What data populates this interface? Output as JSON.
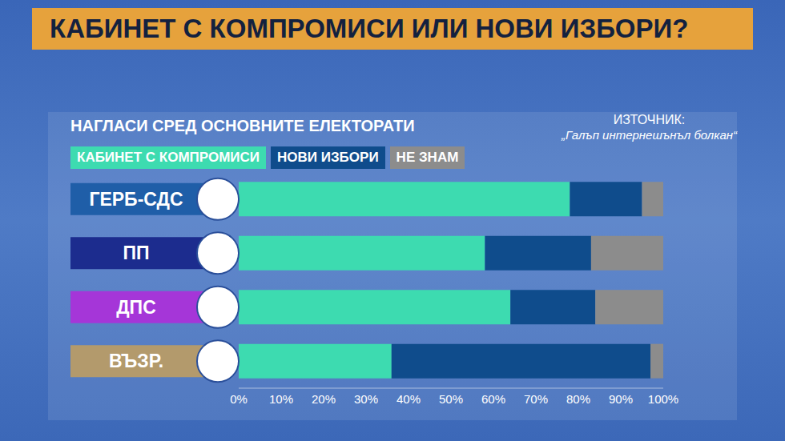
{
  "chart_data": {
    "type": "bar",
    "orientation": "horizontal",
    "stacked": true,
    "title": "КАБИНЕТ С КОМПРОМИСИ ИЛИ НОВИ ИЗБОРИ?",
    "subtitle": "НАГЛАСИ СРЕД ОСНОВНИТЕ ЕЛЕКТОРАТИ",
    "source_label": "ИЗТОЧНИК:",
    "source": "„Галъп интернешънъл болкан“",
    "categories": [
      "ГЕРБ-СДС",
      "ПП",
      "ДПС",
      "ВЪЗР."
    ],
    "series": [
      {
        "name": "КАБИНЕТ С КОМПРОМИСИ",
        "color": "#3ddbb0",
        "values": [
          78,
          58,
          64,
          36
        ]
      },
      {
        "name": "НОВИ ИЗБОРИ",
        "color": "#0f4c8c",
        "values": [
          17,
          25,
          20,
          61
        ]
      },
      {
        "name": "НЕ ЗНАМ",
        "color": "#8c8c8c",
        "values": [
          5,
          17,
          16,
          3
        ]
      }
    ],
    "xlim": [
      0,
      100
    ],
    "xticks": [
      {
        "value": 0,
        "label": "0%"
      },
      {
        "value": 10,
        "label": "10%"
      },
      {
        "value": 20,
        "label": "20%"
      },
      {
        "value": 30,
        "label": "30%"
      },
      {
        "value": 40,
        "label": "40%"
      },
      {
        "value": 50,
        "label": "50%"
      },
      {
        "value": 60,
        "label": "60%"
      },
      {
        "value": 70,
        "label": "70%"
      },
      {
        "value": 80,
        "label": "80%"
      },
      {
        "value": 90,
        "label": "90%"
      },
      {
        "value": 100,
        "label": "100%"
      }
    ],
    "grid": false,
    "legend": "top-left"
  }
}
